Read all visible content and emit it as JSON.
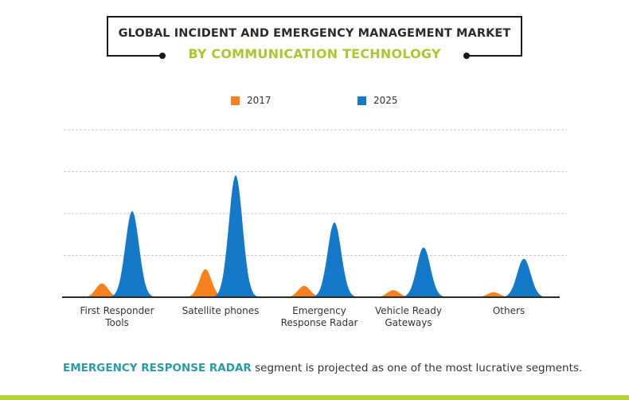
{
  "header": {
    "title": "GLOBAL INCIDENT AND EMERGENCY MANAGEMENT MARKET",
    "subtitle": "BY COMMUNICATION TECHNOLOGY"
  },
  "colors": {
    "series_2017": "#f5821f",
    "series_2025": "#1479c9",
    "subtitle": "#a8c92d",
    "highlight": "#2a9aa8",
    "bottom_bar": "#b5d334"
  },
  "footnote": {
    "highlight": "EMERGENCY RESPONSE RADAR",
    "rest": " segment is projected as one of the most lucrative segments."
  },
  "chart_data": {
    "type": "area",
    "title": "GLOBAL INCIDENT AND EMERGENCY MANAGEMENT MARKET",
    "subtitle": "BY COMMUNICATION TECHNOLOGY",
    "xlabel": "",
    "ylabel": "",
    "categories": [
      "First Responder Tools",
      "Satellite phones",
      "Emergency Response Radar",
      "Vehicle Ready Gateways",
      "Others"
    ],
    "category_labels": [
      [
        "First Responder",
        "Tools"
      ],
      [
        "Satellite phones"
      ],
      [
        "Emergency",
        "Response Radar"
      ],
      [
        "Vehicle Ready",
        "Gateways"
      ],
      [
        "Others"
      ]
    ],
    "series": [
      {
        "name": "2017",
        "color": "#f5821f",
        "values": [
          0.33,
          0.67,
          0.27,
          0.17,
          0.12
        ]
      },
      {
        "name": "2025",
        "color": "#1479c9",
        "values": [
          2.06,
          2.92,
          1.79,
          1.19,
          0.92
        ]
      }
    ],
    "value_units": "relative (gridline intervals; no y-axis tick labels shown)",
    "ylim": [
      0,
      4.1
    ],
    "gridlines": [
      1,
      2,
      3,
      4
    ],
    "grid": true,
    "legend": {
      "position": "top-center",
      "entries": [
        "2017",
        "2025"
      ]
    }
  }
}
